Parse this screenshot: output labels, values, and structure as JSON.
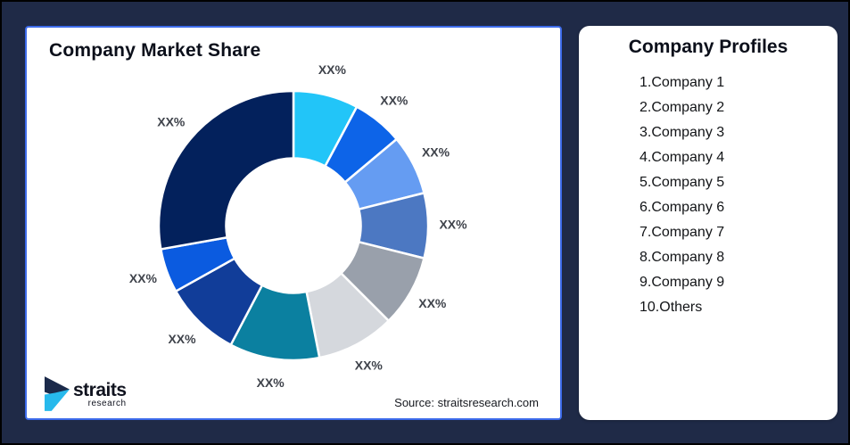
{
  "canvas": {
    "background": "#1F2A47",
    "outer_border_color": "#000000"
  },
  "market_share_card": {
    "title": "Company Market Share",
    "source": "Source: straitsresearch.com",
    "border_color": "#3D6BEA"
  },
  "logo": {
    "name": "straits",
    "sub": "research",
    "icon_navy": "#1B2A4A",
    "icon_cyan": "#27B9EC"
  },
  "profiles_card": {
    "title": "Company Profiles",
    "items": [
      "1.Company 1",
      "2.Company 2",
      "3.Company 3",
      "4.Company 4",
      "5.Company 5",
      "6.Company 6",
      "7.Company 7",
      "8.Company 8",
      "9.Company 9",
      "10.Others"
    ]
  },
  "chart_data": {
    "type": "pie",
    "subtype": "donut",
    "title": "Company Market Share",
    "values_masked": true,
    "segment_label_text": "XX%",
    "start_angle_deg": 0,
    "clockwise": true,
    "inner_radius_ratio": 0.5,
    "legend_position": "none",
    "label_color": "#3F434B",
    "separator_color": "#FFFFFF",
    "segments": [
      {
        "label": "XX%",
        "value_pct_est": 7.8,
        "color": "#22C5F8"
      },
      {
        "label": "XX%",
        "value_pct_est": 6.1,
        "color": "#0D64E8"
      },
      {
        "label": "XX%",
        "value_pct_est": 7.2,
        "color": "#659CF2"
      },
      {
        "label": "XX%",
        "value_pct_est": 7.8,
        "color": "#4C78C2"
      },
      {
        "label": "XX%",
        "value_pct_est": 8.6,
        "color": "#99A0AB"
      },
      {
        "label": "XX%",
        "value_pct_est": 9.4,
        "color": "#D5D8DD"
      },
      {
        "label": "XX%",
        "value_pct_est": 10.8,
        "color": "#0B80A0"
      },
      {
        "label": "XX%",
        "value_pct_est": 9.2,
        "color": "#113D99"
      },
      {
        "label": "XX%",
        "value_pct_est": 5.3,
        "color": "#0B5BE0"
      },
      {
        "label": "XX%",
        "value_pct_est": 27.8,
        "color": "#03215C"
      }
    ]
  }
}
